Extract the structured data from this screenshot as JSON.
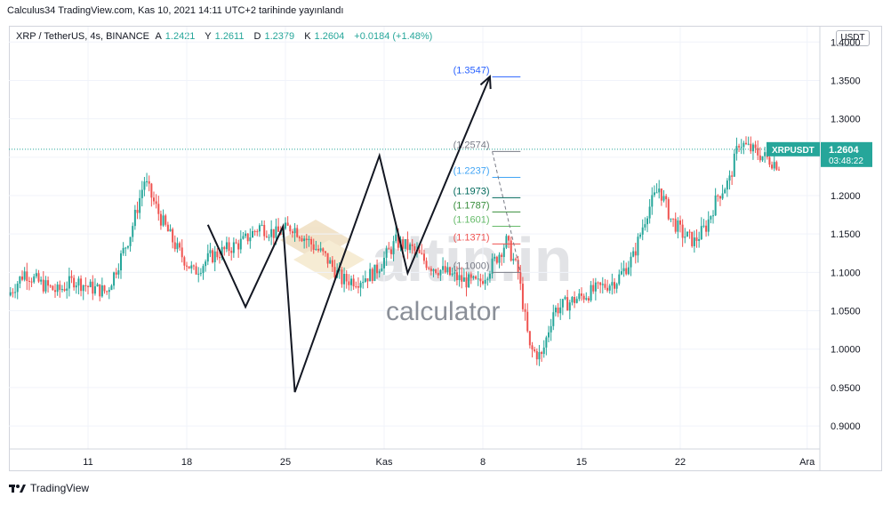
{
  "header": {
    "publish_line": "Calculus34 TradingView.com, Kas 10, 2021 14:11 UTC+2 tarihinde yayınlandı"
  },
  "legend": {
    "symbol": "XRP / TetherUS, 4s, BINANCE",
    "open_label": "A",
    "open": "1.2421",
    "high_label": "Y",
    "high": "1.2611",
    "low_label": "D",
    "low": "1.2379",
    "close_label": "K",
    "close": "1.2604",
    "change": "+0.0184 (+1.48%)"
  },
  "currency_button": "USDT",
  "watermark": {
    "brand": "altin.in",
    "sub": "calculator"
  },
  "footer": {
    "brand": "TradingView"
  },
  "colors": {
    "up": "#26a69a",
    "down": "#ef5350",
    "price_tag": "#26a69a"
  },
  "chart_data": {
    "type": "candlestick",
    "symbol": "XRPUSDT",
    "timeframe": "4s",
    "x_ticks": [
      "11",
      "18",
      "25",
      "Kas",
      "8",
      "15",
      "22",
      "Ara"
    ],
    "y_ticks": [
      "1.4000",
      "1.3500",
      "1.3000",
      "1.2500",
      "1.2000",
      "1.1500",
      "1.1000",
      "1.0500",
      "1.0000",
      "0.9500",
      "0.9000"
    ],
    "ylim": [
      0.87,
      1.42
    ],
    "last_price": {
      "symbol": "XRPUSDT",
      "price": "1.2604",
      "countdown": "03:48:22",
      "value": 1.2604
    },
    "price_path": [
      [
        0,
        1.07
      ],
      [
        7,
        1.1
      ],
      [
        14,
        1.085
      ],
      [
        21,
        1.075
      ],
      [
        28,
        1.09
      ],
      [
        35,
        1.08
      ],
      [
        42,
        1.075
      ],
      [
        52,
        1.15
      ],
      [
        58,
        1.22
      ],
      [
        65,
        1.17
      ],
      [
        72,
        1.13
      ],
      [
        79,
        1.1
      ],
      [
        86,
        1.12
      ],
      [
        93,
        1.13
      ],
      [
        100,
        1.14
      ],
      [
        107,
        1.16
      ],
      [
        114,
        1.15
      ],
      [
        121,
        1.16
      ],
      [
        128,
        1.14
      ],
      [
        135,
        1.12
      ],
      [
        142,
        1.09
      ],
      [
        149,
        1.09
      ],
      [
        156,
        1.1
      ],
      [
        165,
        1.14
      ],
      [
        172,
        1.13
      ],
      [
        179,
        1.11
      ],
      [
        186,
        1.1
      ],
      [
        193,
        1.09
      ],
      [
        200,
        1.085
      ],
      [
        206,
        1.11
      ],
      [
        212,
        1.14
      ],
      [
        217,
        1.1
      ],
      [
        222,
        1.0
      ],
      [
        227,
        0.99
      ],
      [
        232,
        1.05
      ],
      [
        238,
        1.06
      ],
      [
        245,
        1.07
      ],
      [
        252,
        1.08
      ],
      [
        259,
        1.09
      ],
      [
        266,
        1.12
      ],
      [
        272,
        1.18
      ],
      [
        277,
        1.21
      ],
      [
        282,
        1.17
      ],
      [
        287,
        1.15
      ],
      [
        292,
        1.14
      ],
      [
        297,
        1.16
      ],
      [
        302,
        1.2
      ],
      [
        307,
        1.22
      ],
      [
        311,
        1.27
      ],
      [
        316,
        1.26
      ],
      [
        322,
        1.25
      ],
      [
        328,
        1.24
      ]
    ],
    "pattern_line": [
      [
        1.162,
        85
      ],
      [
        1.055,
        101
      ],
      [
        1.16,
        117
      ],
      [
        0.944,
        122
      ],
      [
        1.252,
        158
      ],
      [
        1.099,
        170
      ],
      [
        1.355,
        205
      ]
    ],
    "fib_levels": [
      {
        "label": "(1.3547)",
        "value": 1.3547,
        "color": "#2962ff"
      },
      {
        "label": "(1.2574)",
        "value": 1.2574,
        "color": "#787b86"
      },
      {
        "label": "(1.2237)",
        "value": 1.2237,
        "color": "#42a5f5"
      },
      {
        "label": "(1.1973)",
        "value": 1.1973,
        "color": "#00695c"
      },
      {
        "label": "(1.1787)",
        "value": 1.1787,
        "color": "#388e3c"
      },
      {
        "label": "(1.1601)",
        "value": 1.1601,
        "color": "#66bb6a"
      },
      {
        "label": "(1.1371)",
        "value": 1.1371,
        "color": "#ef5350"
      },
      {
        "label": "(1.1000)",
        "value": 1.1,
        "color": "#787b86"
      }
    ]
  }
}
